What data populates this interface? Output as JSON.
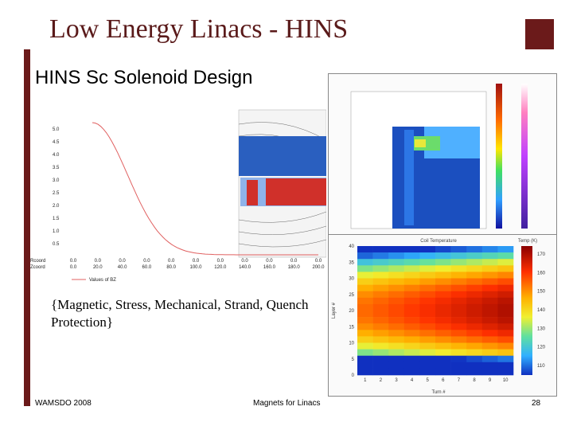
{
  "slide": {
    "title": "Low Energy Linacs - HINS",
    "subtitle": "HINS Sc Solenoid Design",
    "caption": "{Magnetic, Stress, Mechanical, Strand, Quench Protection}",
    "footer_left": "WAMSDO 2008",
    "footer_center": "Magnets for Linacs",
    "footer_right": "28"
  },
  "field_plot": {
    "y_ticks": [
      "5.0",
      "4.5",
      "4.0",
      "3.5",
      "3.0",
      "2.5",
      "2.0",
      "1.5",
      "1.0",
      "0.5"
    ],
    "x_ticks": [
      "0.0",
      "20.0",
      "40.0",
      "60.0",
      "80.0",
      "100.0",
      "120.0",
      "140.0",
      "160.0",
      "180.0",
      "200.0"
    ],
    "row_label_1": "Rcoord",
    "row_label_2": "Zcoord",
    "legend": "Values of BZ",
    "colors": {
      "curve": "#e06060"
    }
  },
  "chart_data": {
    "type": "heatmap",
    "title": "Coil Temperature",
    "legend_title": "Temp (K)",
    "xlabel": "Turn #",
    "ylabel": "Layer #",
    "x_ticks": [
      "1",
      "2",
      "3",
      "4",
      "5",
      "6",
      "7",
      "8",
      "9",
      "10"
    ],
    "y_ticks": [
      "0",
      "5",
      "10",
      "15",
      "20",
      "25",
      "30",
      "35",
      "40"
    ],
    "colorbar_ticks": [
      "170",
      "160",
      "150",
      "140",
      "130",
      "120",
      "110"
    ]
  }
}
